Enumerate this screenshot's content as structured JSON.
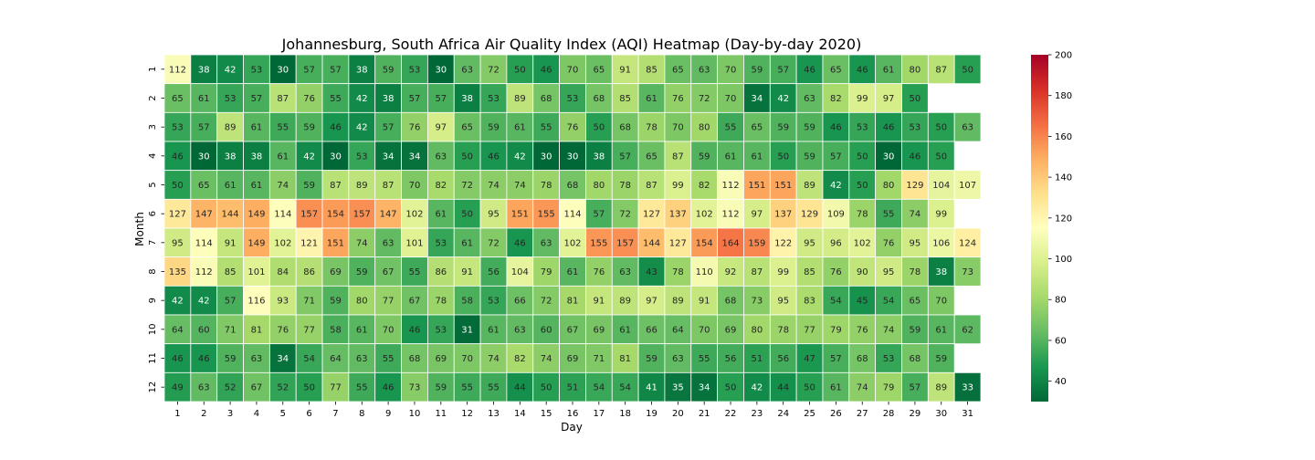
{
  "chart_data": {
    "type": "heatmap",
    "title": "Johannesburg, South Africa Air Quality Index (AQI) Heatmap (Day-by-day 2020)",
    "xlabel": "Day",
    "ylabel": "Month",
    "x_categories": [
      "1",
      "2",
      "3",
      "4",
      "5",
      "6",
      "7",
      "8",
      "9",
      "10",
      "11",
      "12",
      "13",
      "14",
      "15",
      "16",
      "17",
      "18",
      "19",
      "20",
      "21",
      "22",
      "23",
      "24",
      "25",
      "26",
      "27",
      "28",
      "29",
      "30",
      "31"
    ],
    "y_categories": [
      "1",
      "2",
      "3",
      "4",
      "5",
      "6",
      "7",
      "8",
      "9",
      "10",
      "11",
      "12"
    ],
    "values": [
      [
        112,
        38,
        42,
        53,
        30,
        57,
        57,
        38,
        59,
        53,
        30,
        63,
        72,
        50,
        46,
        70,
        65,
        91,
        85,
        65,
        63,
        70,
        59,
        57,
        46,
        65,
        46,
        61,
        80,
        87,
        50
      ],
      [
        65,
        61,
        53,
        57,
        87,
        76,
        55,
        42,
        38,
        57,
        57,
        38,
        53,
        89,
        68,
        53,
        68,
        85,
        61,
        76,
        72,
        70,
        34,
        42,
        63,
        82,
        99,
        97,
        50,
        null,
        null
      ],
      [
        53,
        57,
        89,
        61,
        55,
        59,
        46,
        42,
        57,
        76,
        97,
        65,
        59,
        61,
        55,
        76,
        50,
        68,
        78,
        70,
        80,
        55,
        65,
        59,
        59,
        46,
        53,
        46,
        53,
        50,
        63
      ],
      [
        46,
        30,
        38,
        38,
        61,
        42,
        30,
        53,
        34,
        34,
        63,
        50,
        46,
        42,
        30,
        30,
        38,
        57,
        65,
        87,
        59,
        61,
        61,
        50,
        59,
        57,
        50,
        30,
        46,
        50,
        null
      ],
      [
        50,
        65,
        61,
        61,
        74,
        59,
        87,
        89,
        87,
        70,
        82,
        72,
        74,
        74,
        78,
        68,
        80,
        78,
        87,
        99,
        82,
        112,
        151,
        151,
        89,
        42,
        50,
        80,
        129,
        104,
        107
      ],
      [
        127,
        147,
        144,
        149,
        114,
        157,
        154,
        157,
        147,
        102,
        61,
        50,
        95,
        151,
        155,
        114,
        57,
        72,
        127,
        137,
        102,
        112,
        97,
        137,
        129,
        109,
        78,
        55,
        74,
        99,
        null
      ],
      [
        95,
        114,
        91,
        149,
        102,
        121,
        151,
        74,
        63,
        101,
        53,
        61,
        72,
        46,
        63,
        102,
        155,
        157,
        144,
        127,
        154,
        164,
        159,
        122,
        95,
        96,
        102,
        76,
        95,
        106,
        124
      ],
      [
        135,
        112,
        85,
        101,
        84,
        86,
        69,
        59,
        67,
        55,
        86,
        91,
        56,
        104,
        79,
        61,
        76,
        63,
        43,
        78,
        110,
        92,
        87,
        99,
        85,
        76,
        90,
        95,
        78,
        38,
        73
      ],
      [
        42,
        42,
        57,
        116,
        93,
        71,
        59,
        80,
        77,
        67,
        78,
        58,
        53,
        66,
        72,
        81,
        91,
        89,
        97,
        89,
        91,
        68,
        73,
        95,
        83,
        54,
        45,
        54,
        65,
        70,
        null
      ],
      [
        64,
        60,
        71,
        81,
        76,
        77,
        58,
        61,
        70,
        46,
        53,
        31,
        61,
        63,
        60,
        67,
        69,
        61,
        66,
        64,
        70,
        69,
        80,
        78,
        77,
        79,
        76,
        74,
        59,
        61,
        62
      ],
      [
        46,
        46,
        59,
        63,
        34,
        54,
        64,
        63,
        55,
        68,
        69,
        70,
        74,
        82,
        74,
        69,
        71,
        81,
        59,
        63,
        55,
        56,
        51,
        56,
        47,
        57,
        68,
        53,
        68,
        59,
        null
      ],
      [
        49,
        63,
        52,
        67,
        52,
        50,
        77,
        55,
        46,
        73,
        59,
        55,
        55,
        44,
        50,
        51,
        54,
        54,
        41,
        35,
        34,
        50,
        42,
        44,
        50,
        61,
        74,
        79,
        57,
        89,
        33
      ]
    ],
    "vmin": 30,
    "vmax": 200,
    "colormap": "RdYlGn_r",
    "colorbar_ticks": [
      "40",
      "60",
      "80",
      "100",
      "120",
      "140",
      "160",
      "180",
      "200"
    ],
    "annotations": true,
    "grid": false
  }
}
